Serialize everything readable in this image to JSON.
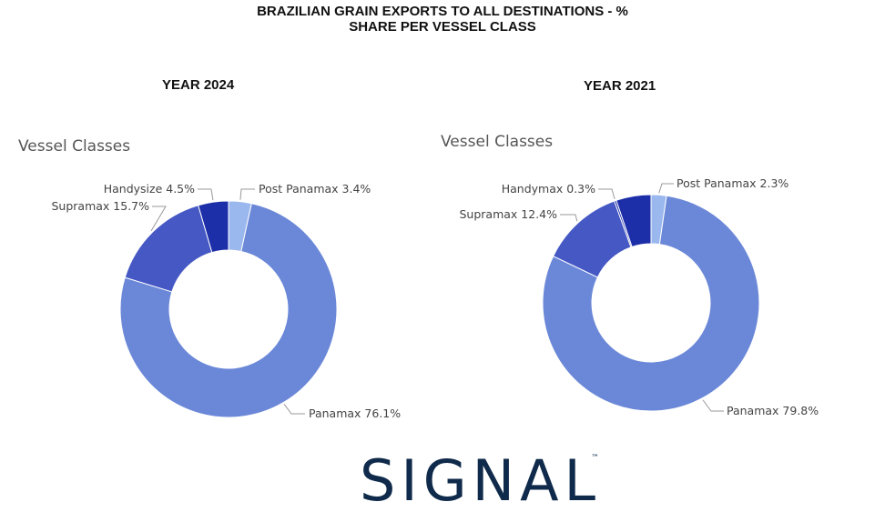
{
  "title_line1": "BRAZILIAN GRAIN EXPORTS TO ALL DESTINATIONS - %",
  "title_line2": "SHARE PER VESSEL CLASS",
  "logo": {
    "text": "SIGNAL",
    "mark": "™"
  },
  "colors": {
    "Post Panamax": "#9bb8ee",
    "Panamax": "#6b88d8",
    "Supramax": "#4558c4",
    "Handysize": "#1c2fa8",
    "Handymax": "#1c2fa8",
    "leader": "#999999"
  },
  "chart_data": [
    {
      "type": "pie",
      "title": "YEAR 2024",
      "legend_title": "Vessel Classes",
      "donut": true,
      "slices": [
        {
          "name": "Post Panamax",
          "value": 3.4,
          "label": "Post Panamax 3.4%"
        },
        {
          "name": "Panamax",
          "value": 76.1,
          "label": "Panamax 76.1%"
        },
        {
          "name": "Supramax",
          "value": 15.7,
          "label": "Supramax 15.7%"
        },
        {
          "name": "Handysize",
          "value": 4.5,
          "label": "Handysize 4.5%"
        }
      ]
    },
    {
      "type": "pie",
      "title": "YEAR 2021",
      "legend_title": "Vessel Classes",
      "donut": true,
      "slices": [
        {
          "name": "Post Panamax",
          "value": 2.3,
          "label": "Post Panamax 2.3%"
        },
        {
          "name": "Panamax",
          "value": 79.8,
          "label": "Panamax 79.8%"
        },
        {
          "name": "Supramax",
          "value": 12.4,
          "label": "Supramax 12.4%"
        },
        {
          "name": "Handymax",
          "value": 0.3,
          "label": "Handymax 0.3%"
        },
        {
          "name": "Handysize",
          "value": 5.2,
          "label": ""
        }
      ]
    }
  ]
}
